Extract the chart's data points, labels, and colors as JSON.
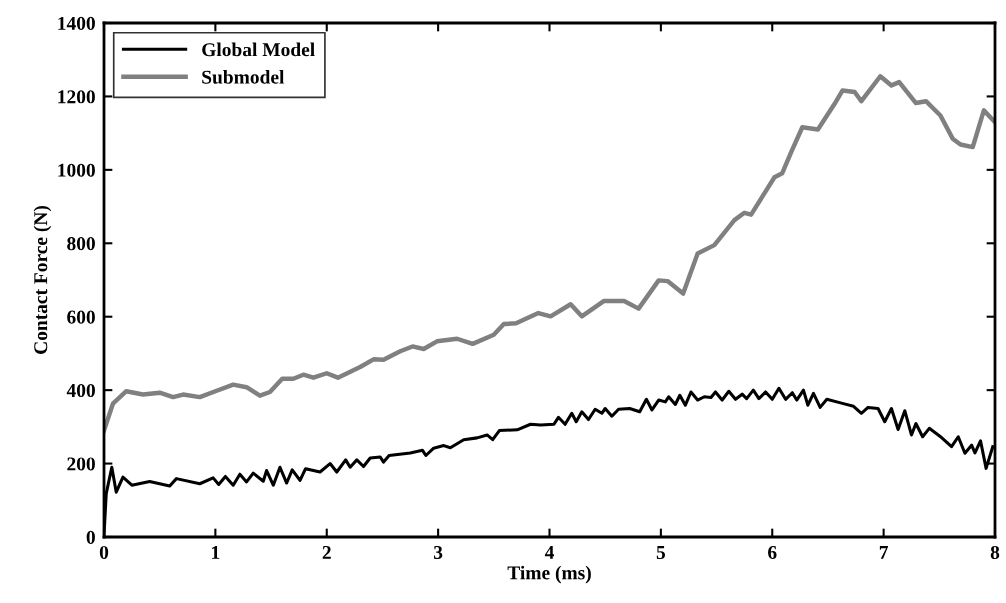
{
  "chart_data": {
    "type": "line",
    "xlabel": "Time (ms)",
    "ylabel": "Contact Force (N)",
    "xlim": [
      0,
      8
    ],
    "xticks": [
      0,
      1,
      2,
      3,
      4,
      5,
      6,
      7,
      8
    ],
    "ylim": [
      0,
      1400
    ],
    "yticks": [
      0,
      200,
      400,
      600,
      800,
      1000,
      1200,
      1400
    ],
    "grid": false,
    "legend": "top left",
    "marker": "none",
    "line_style": "solid",
    "series": [
      {
        "name": "Global Model",
        "color": "#000000",
        "x": [
          0,
          0.02,
          0.07,
          0.11,
          0.17,
          0.25,
          0.41,
          0.59,
          0.65,
          0.86,
          0.98,
          1.03,
          1.09,
          1.16,
          1.22,
          1.28,
          1.34,
          1.43,
          1.46,
          1.52,
          1.58,
          1.64,
          1.69,
          1.76,
          1.81,
          1.94,
          2.03,
          2.09,
          2.17,
          2.21,
          2.27,
          2.33,
          2.39,
          2.48,
          2.51,
          2.56,
          2.75,
          2.86,
          2.89,
          2.96,
          3.05,
          3.11,
          3.23,
          3.35,
          3.44,
          3.49,
          3.55,
          3.71,
          3.83,
          3.92,
          4.04,
          4.08,
          4.14,
          4.2,
          4.24,
          4.29,
          4.35,
          4.41,
          4.47,
          4.5,
          4.56,
          4.62,
          4.72,
          4.81,
          4.87,
          4.92,
          4.98,
          5.04,
          5.07,
          5.13,
          5.17,
          5.22,
          5.27,
          5.33,
          5.39,
          5.45,
          5.49,
          5.55,
          5.61,
          5.67,
          5.73,
          5.77,
          5.83,
          5.88,
          5.94,
          6.0,
          6.06,
          6.12,
          6.18,
          6.22,
          6.28,
          6.32,
          6.37,
          6.43,
          6.49,
          6.63,
          6.73,
          6.8,
          6.86,
          6.95,
          7.01,
          7.07,
          7.13,
          7.19,
          7.25,
          7.29,
          7.35,
          7.41,
          7.52,
          7.61,
          7.67,
          7.73,
          7.79,
          7.82,
          7.87,
          7.92,
          7.98
        ],
        "values": [
          5,
          118,
          190,
          122,
          163,
          141,
          151,
          139,
          159,
          145,
          161,
          143,
          165,
          141,
          171,
          150,
          174,
          152,
          181,
          141,
          190,
          147,
          183,
          154,
          186,
          177,
          200,
          177,
          210,
          190,
          210,
          192,
          215,
          218,
          204,
          222,
          229,
          236,
          222,
          242,
          249,
          243,
          265,
          270,
          278,
          265,
          290,
          292,
          307,
          305,
          307,
          326,
          307,
          337,
          314,
          341,
          320,
          348,
          337,
          350,
          329,
          348,
          350,
          341,
          375,
          346,
          373,
          368,
          382,
          361,
          386,
          359,
          395,
          373,
          382,
          380,
          395,
          373,
          397,
          375,
          389,
          377,
          400,
          377,
          395,
          375,
          405,
          375,
          393,
          373,
          400,
          359,
          391,
          353,
          375,
          364,
          356,
          337,
          353,
          350,
          314,
          350,
          293,
          344,
          278,
          309,
          273,
          296,
          271,
          246,
          273,
          228,
          250,
          229,
          262,
          187,
          246
        ]
      },
      {
        "name": "Submodel",
        "color": "#808080",
        "x": [
          0,
          0.08,
          0.2,
          0.35,
          0.5,
          0.62,
          0.71,
          0.86,
          1.0,
          1.16,
          1.28,
          1.4,
          1.49,
          1.6,
          1.7,
          1.79,
          1.88,
          2.0,
          2.1,
          2.3,
          2.42,
          2.51,
          2.66,
          2.77,
          2.87,
          2.99,
          3.17,
          3.31,
          3.5,
          3.59,
          3.7,
          3.9,
          4.01,
          4.19,
          4.29,
          4.49,
          4.67,
          4.8,
          4.98,
          5.06,
          5.2,
          5.33,
          5.48,
          5.66,
          5.75,
          5.81,
          6.02,
          6.09,
          6.17,
          6.27,
          6.41,
          6.56,
          6.63,
          6.74,
          6.8,
          6.97,
          7.07,
          7.14,
          7.29,
          7.38,
          7.51,
          7.62,
          7.69,
          7.8,
          7.9,
          8.0
        ],
        "values": [
          290,
          363,
          397,
          388,
          393,
          381,
          388,
          381,
          397,
          415,
          408,
          385,
          395,
          431,
          431,
          442,
          434,
          446,
          434,
          463,
          484,
          483,
          506,
          519,
          512,
          533,
          540,
          526,
          551,
          580,
          582,
          610,
          601,
          634,
          601,
          643,
          643,
          622,
          699,
          697,
          663,
          772,
          795,
          863,
          883,
          878,
          980,
          991,
          1048,
          1116,
          1110,
          1180,
          1216,
          1212,
          1187,
          1255,
          1230,
          1239,
          1182,
          1187,
          1148,
          1085,
          1069,
          1062,
          1162,
          1130
        ]
      }
    ]
  }
}
